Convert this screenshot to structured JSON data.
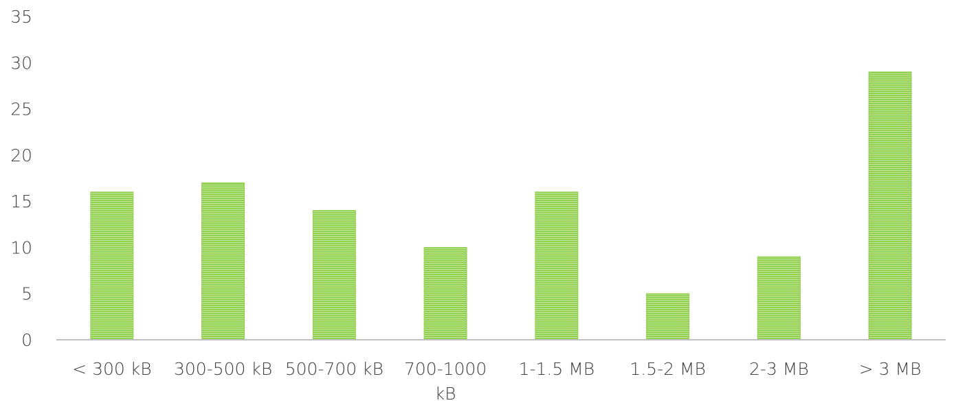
{
  "chart_data": {
    "type": "bar",
    "categories": [
      "< 300 kB",
      "300-500 kB",
      "500-700 kB",
      "700-1000 kB",
      "1-1.5 MB",
      "1.5-2 MB",
      "2-3 MB",
      "> 3 MB"
    ],
    "category_label_lines": [
      [
        "< 300 kB"
      ],
      [
        "300-500 kB"
      ],
      [
        "500-700 kB"
      ],
      [
        "700-1000",
        "kB"
      ],
      [
        "1-1.5 MB"
      ],
      [
        "1.5-2 MB"
      ],
      [
        "2-3 MB"
      ],
      [
        "> 3 MB"
      ]
    ],
    "values": [
      16,
      17,
      14,
      10,
      16,
      5,
      9,
      29
    ],
    "title": "",
    "xlabel": "",
    "ylabel": "",
    "ylim": [
      0,
      35
    ],
    "yticks": [
      0,
      5,
      10,
      15,
      20,
      25,
      30,
      35
    ],
    "grid": false,
    "legend": "none",
    "bar_color": "#92d050",
    "bar_stripe_color": "#ffffff",
    "axis_color": "#bfbfbf",
    "text_color": "#404040"
  }
}
